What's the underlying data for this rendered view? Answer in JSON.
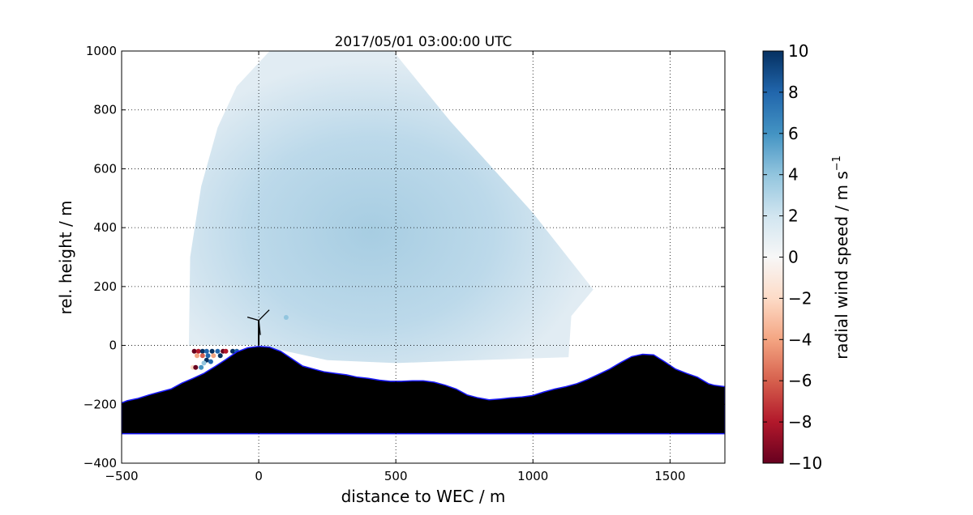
{
  "chart_data": {
    "type": "scatter",
    "title": "2017/05/01 03:00:00 UTC",
    "xlabel": "distance to WEC / m",
    "ylabel": "rel. height / m",
    "xlim": [
      -500,
      1700
    ],
    "ylim": [
      -400,
      1000
    ],
    "xticks": [
      -500,
      0,
      500,
      1000,
      1500
    ],
    "yticks": [
      -400,
      -200,
      0,
      200,
      400,
      600,
      800,
      1000
    ],
    "xtick_labels": [
      "−500",
      "0",
      "500",
      "1000",
      "1500"
    ],
    "ytick_labels": [
      "−400",
      "−200",
      "0",
      "200",
      "400",
      "600",
      "800",
      "1000"
    ],
    "grid": true,
    "colorbar": {
      "label": "radial wind speed / m s",
      "label_superscript": "−1",
      "range": [
        -10,
        10
      ],
      "ticks": [
        10,
        8,
        6,
        4,
        2,
        0,
        -2,
        -4,
        -6,
        -8,
        -10
      ],
      "tick_labels": [
        "10",
        "8",
        "6",
        "4",
        "2",
        "0",
        "−2",
        "−4",
        "−6",
        "−8",
        "−10"
      ],
      "colormap": "RdBu"
    },
    "scan_sector": {
      "description": "RHI scan sector, radial wind speed mostly 1–3 m/s",
      "inner_boundary": [
        [
          -255,
          0
        ],
        [
          -250,
          300
        ],
        [
          -210,
          540
        ],
        [
          -150,
          740
        ],
        [
          -80,
          880
        ],
        [
          40,
          1000
        ],
        [
          490,
          1000
        ],
        [
          700,
          760
        ],
        [
          1000,
          450
        ],
        [
          1220,
          190
        ],
        [
          1140,
          100
        ],
        [
          1130,
          -40
        ]
      ],
      "bottom_boundary": [
        [
          1130,
          -40
        ],
        [
          800,
          -50
        ],
        [
          500,
          -60
        ],
        [
          250,
          -50
        ],
        [
          100,
          -20
        ],
        [
          0,
          0
        ],
        [
          -255,
          0
        ]
      ]
    },
    "terrain": {
      "profile_x": [
        -500,
        -480,
        -440,
        -400,
        -360,
        -320,
        -280,
        -240,
        -200,
        -160,
        -120,
        -80,
        -40,
        0,
        40,
        80,
        120,
        160,
        200,
        240,
        280,
        320,
        360,
        400,
        440,
        480,
        520,
        560,
        600,
        640,
        680,
        720,
        760,
        800,
        840,
        880,
        920,
        960,
        1000,
        1040,
        1080,
        1120,
        1160,
        1200,
        1240,
        1280,
        1320,
        1360,
        1400,
        1440,
        1480,
        1520,
        1560,
        1600,
        1640,
        1660,
        1700
      ],
      "profile_y": [
        -195,
        -188,
        -180,
        -168,
        -158,
        -148,
        -128,
        -112,
        -95,
        -72,
        -48,
        -22,
        -8,
        -3,
        -6,
        -20,
        -45,
        -70,
        -80,
        -90,
        -95,
        -100,
        -108,
        -112,
        -118,
        -122,
        -122,
        -120,
        -120,
        -125,
        -135,
        -148,
        -168,
        -178,
        -185,
        -182,
        -178,
        -175,
        -170,
        -158,
        -148,
        -140,
        -130,
        -115,
        -98,
        -80,
        -58,
        -38,
        -30,
        -32,
        -55,
        -80,
        -95,
        -108,
        -130,
        -135,
        -140
      ],
      "base_y": -300
    },
    "turbine": {
      "x": 0,
      "hub_height": 85
    }
  }
}
